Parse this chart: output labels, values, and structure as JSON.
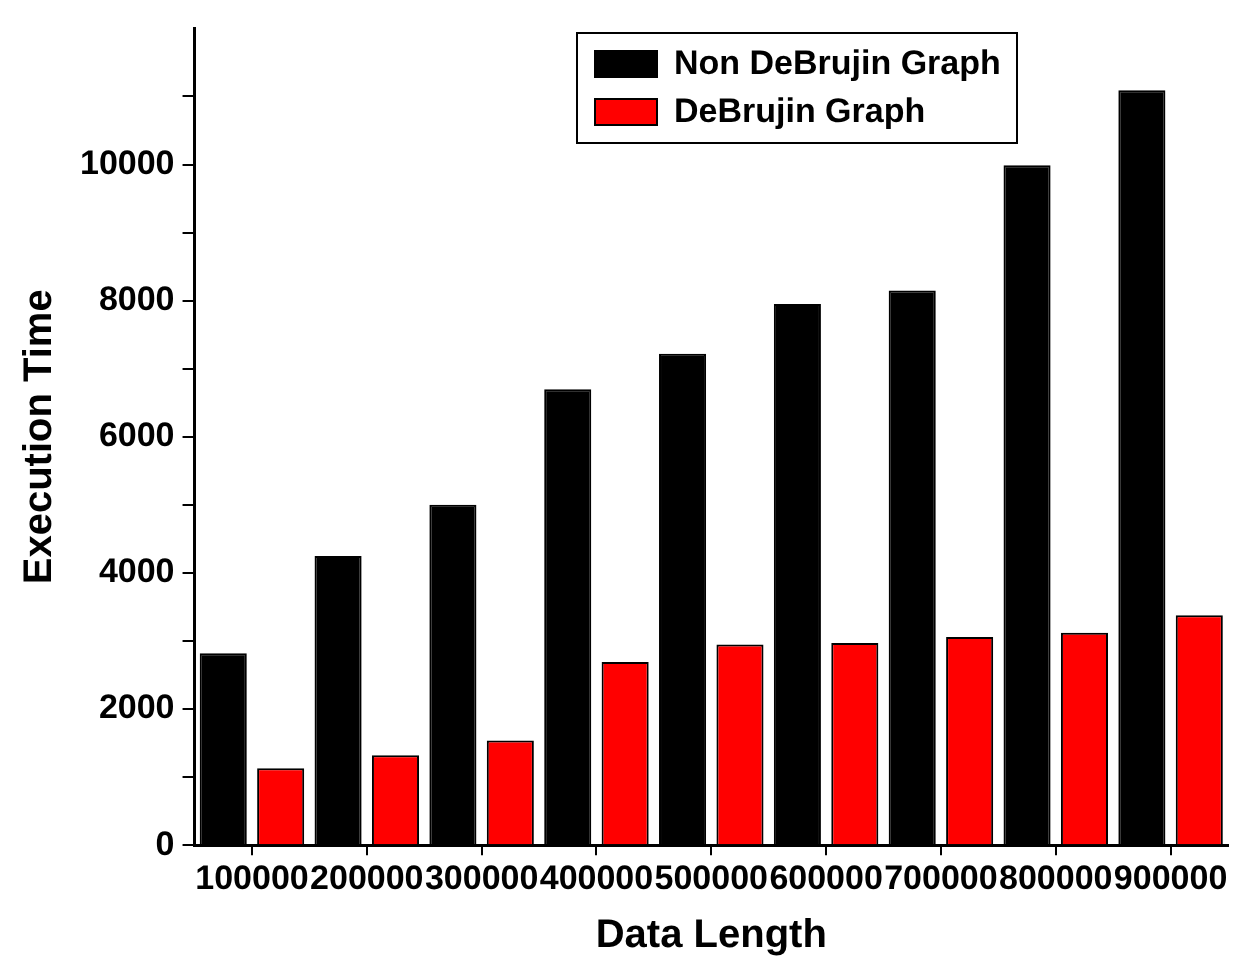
{
  "chart_data": {
    "type": "bar",
    "xlabel": "Data Length",
    "ylabel": "Execution Time",
    "categories": [
      "100000",
      "200000",
      "300000",
      "400000",
      "500000",
      "600000",
      "700000",
      "800000",
      "900000"
    ],
    "series": [
      {
        "name": "Non DeBrujin Graph",
        "color": "#000000",
        "values": [
          2820,
          4250,
          5000,
          6700,
          7220,
          7950,
          8150,
          9990,
          11090
        ]
      },
      {
        "name": "DeBrujin Graph",
        "color": "#ff0000",
        "values": [
          1130,
          1320,
          1540,
          2690,
          2950,
          2970,
          3060,
          3120,
          3380
        ]
      }
    ],
    "ylim": [
      0,
      12000
    ],
    "yticks": [
      0,
      {
        "value": 1000,
        "label": null
      },
      2000,
      {
        "value": 3000,
        "label": null
      },
      4000,
      {
        "value": 5000,
        "label": null
      },
      6000,
      {
        "value": 7000,
        "label": null
      },
      8000,
      {
        "value": 9000,
        "label": null
      },
      10000,
      {
        "value": 11000,
        "label": null
      }
    ],
    "grid": false,
    "legend": "top"
  }
}
